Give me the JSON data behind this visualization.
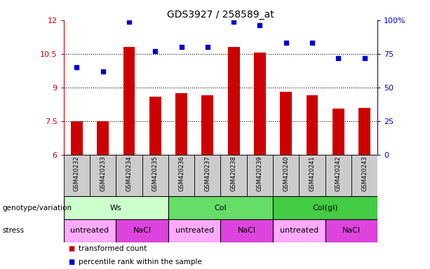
{
  "title": "GDS3927 / 258589_at",
  "samples": [
    "GSM420232",
    "GSM420233",
    "GSM420234",
    "GSM420235",
    "GSM420236",
    "GSM420237",
    "GSM420238",
    "GSM420239",
    "GSM420240",
    "GSM420241",
    "GSM420242",
    "GSM420243"
  ],
  "bar_values": [
    7.5,
    7.5,
    10.8,
    8.6,
    8.75,
    8.65,
    10.8,
    10.55,
    8.8,
    8.65,
    8.05,
    8.1
  ],
  "dot_values": [
    65,
    62,
    99,
    77,
    80,
    80,
    99,
    96,
    83,
    83,
    72,
    72
  ],
  "bar_color": "#cc0000",
  "dot_color": "#0000cc",
  "ylim_left": [
    6,
    12
  ],
  "ylim_right": [
    0,
    100
  ],
  "yticks_left": [
    6,
    7.5,
    9,
    10.5,
    12
  ],
  "yticks_right": [
    0,
    25,
    50,
    75,
    100
  ],
  "ytick_labels_left": [
    "6",
    "7.5",
    "9",
    "10.5",
    "12"
  ],
  "ytick_labels_right": [
    "0",
    "25",
    "50",
    "75",
    "100%"
  ],
  "hlines": [
    7.5,
    9.0,
    10.5
  ],
  "genotype_groups": [
    {
      "label": "Ws",
      "start": 0,
      "end": 4,
      "color": "#ccffcc"
    },
    {
      "label": "Col",
      "start": 4,
      "end": 8,
      "color": "#66dd66"
    },
    {
      "label": "Col(gl)",
      "start": 8,
      "end": 12,
      "color": "#44cc44"
    }
  ],
  "stress_groups": [
    {
      "label": "untreated",
      "start": 0,
      "end": 2,
      "color": "#ffaaff"
    },
    {
      "label": "NaCl",
      "start": 2,
      "end": 4,
      "color": "#dd44dd"
    },
    {
      "label": "untreated",
      "start": 4,
      "end": 6,
      "color": "#ffaaff"
    },
    {
      "label": "NaCl",
      "start": 6,
      "end": 8,
      "color": "#dd44dd"
    },
    {
      "label": "untreated",
      "start": 8,
      "end": 10,
      "color": "#ffaaff"
    },
    {
      "label": "NaCl",
      "start": 10,
      "end": 12,
      "color": "#dd44dd"
    }
  ],
  "legend_items": [
    {
      "label": "transformed count",
      "color": "#cc0000"
    },
    {
      "label": "percentile rank within the sample",
      "color": "#0000cc"
    }
  ],
  "genotype_label": "genotype/variation",
  "stress_label": "stress",
  "title_fontsize": 10,
  "tick_fontsize": 8,
  "row_fontsize": 8,
  "sample_fontsize": 6
}
